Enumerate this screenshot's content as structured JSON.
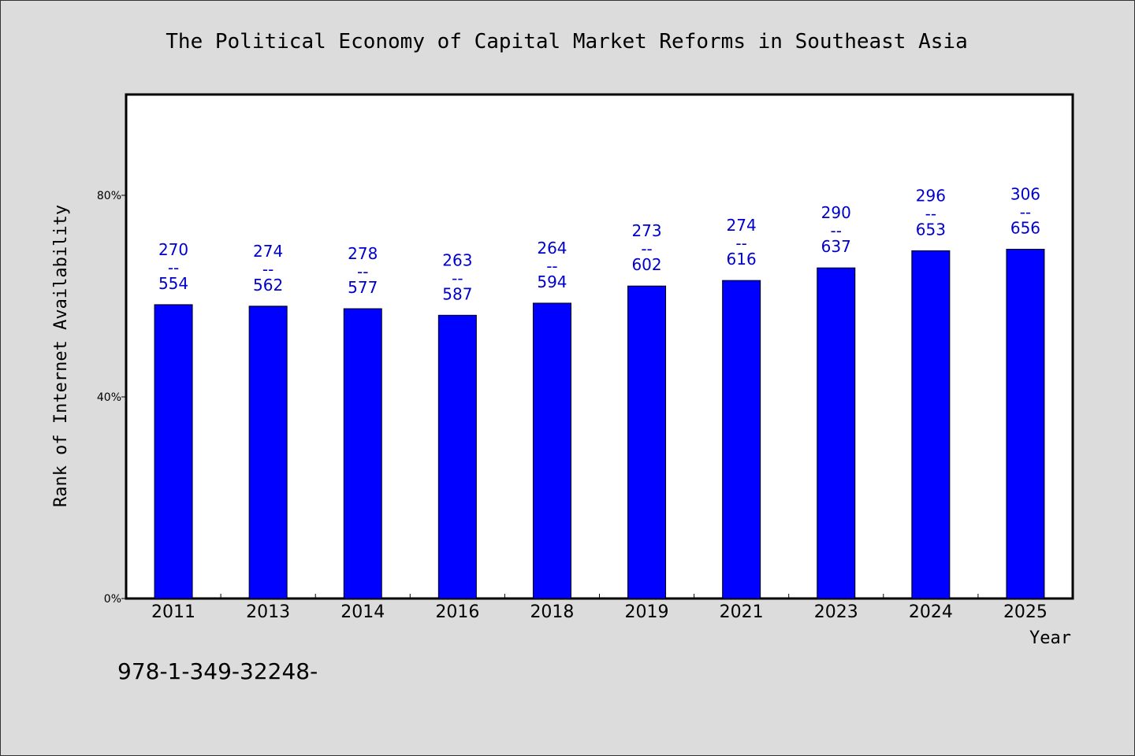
{
  "chart_data": {
    "type": "bar",
    "title": "The Political Economy of Capital Market Reforms in Southeast Asia",
    "xlabel": "Year",
    "ylabel": "Rank of Internet Availability",
    "categories": [
      "2011",
      "2013",
      "2014",
      "2016",
      "2018",
      "2019",
      "2021",
      "2023",
      "2024",
      "2025"
    ],
    "values": [
      58.3,
      58.0,
      57.5,
      56.2,
      58.6,
      62.0,
      63.1,
      65.6,
      69.0,
      69.3
    ],
    "ylim": [
      0,
      100
    ],
    "yticks": [
      {
        "value": 0,
        "label": "0%"
      },
      {
        "value": 40,
        "label": "40%"
      },
      {
        "value": 80,
        "label": "80%"
      }
    ],
    "data_labels": [
      {
        "top": "270",
        "sep": "--",
        "bottom": "554"
      },
      {
        "top": "274",
        "sep": "--",
        "bottom": "562"
      },
      {
        "top": "278",
        "sep": "--",
        "bottom": "577"
      },
      {
        "top": "263",
        "sep": "--",
        "bottom": "587"
      },
      {
        "top": "264",
        "sep": "--",
        "bottom": "594"
      },
      {
        "top": "273",
        "sep": "--",
        "bottom": "602"
      },
      {
        "top": "274",
        "sep": "--",
        "bottom": "616"
      },
      {
        "top": "290",
        "sep": "--",
        "bottom": "637"
      },
      {
        "top": "296",
        "sep": "--",
        "bottom": "653"
      },
      {
        "top": "306",
        "sep": "--",
        "bottom": "656"
      }
    ],
    "grid": false,
    "legend": "none",
    "bar_color": "#0000ff",
    "label_color": "#0000cc"
  },
  "footer": {
    "isbn": "978-1-349-32248-"
  }
}
